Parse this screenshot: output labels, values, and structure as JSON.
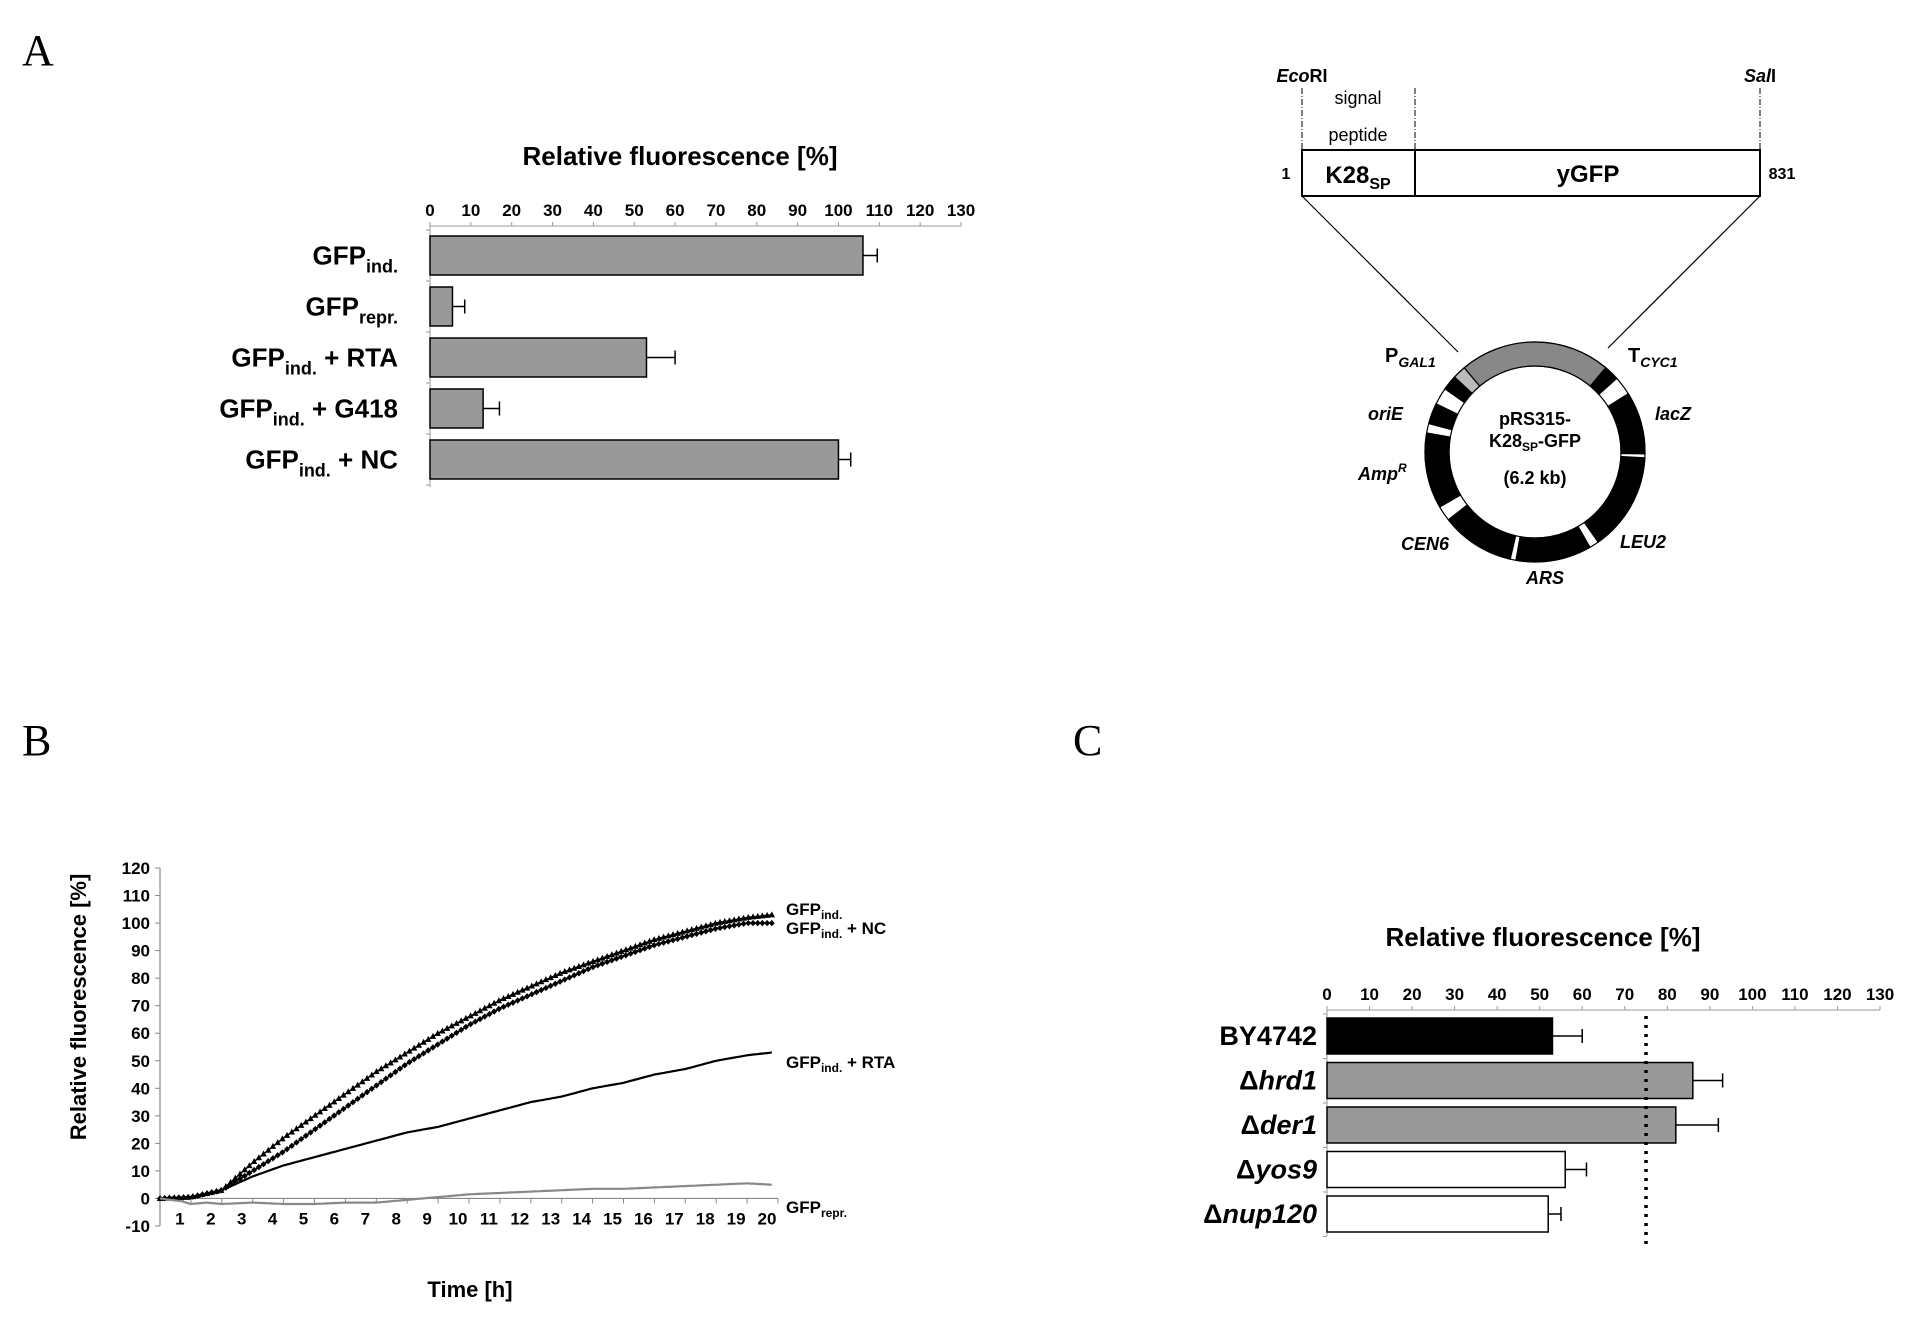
{
  "panels": {
    "a": {
      "letter": "A"
    },
    "b": {
      "letter": "B"
    },
    "c": {
      "letter": "C"
    }
  },
  "chart_data": [
    {
      "id": "A-bar",
      "type": "bar",
      "orientation": "horizontal",
      "title": "Relative fluorescence [%]",
      "xlim": [
        0,
        130
      ],
      "ticks": [
        0,
        10,
        20,
        30,
        40,
        50,
        60,
        70,
        80,
        90,
        100,
        110,
        120,
        130
      ],
      "categories": [
        {
          "base": "GFP",
          "sub": "ind.",
          "suffix": ""
        },
        {
          "base": "GFP",
          "sub": "repr.",
          "suffix": ""
        },
        {
          "base": "GFP",
          "sub": "ind.",
          "suffix": " + RTA"
        },
        {
          "base": "GFP",
          "sub": "ind.",
          "suffix": " +  G418"
        },
        {
          "base": "GFP",
          "sub": "ind.",
          "suffix": " + NC"
        }
      ],
      "values": [
        106,
        5.5,
        53,
        13,
        100
      ],
      "errors": [
        3.5,
        3,
        7,
        4,
        3
      ],
      "colors": [
        "#999999",
        "#999999",
        "#999999",
        "#999999",
        "#999999"
      ]
    },
    {
      "id": "B-line",
      "type": "line",
      "xlabel": "Time [h]",
      "ylabel": "Relative fluorescence [%]",
      "xlim": [
        0,
        20
      ],
      "ylim": [
        -10,
        120
      ],
      "xticks": [
        1,
        2,
        3,
        4,
        5,
        6,
        7,
        8,
        9,
        10,
        11,
        12,
        13,
        14,
        15,
        16,
        17,
        18,
        19,
        20
      ],
      "yticks": [
        -10,
        0,
        10,
        20,
        30,
        40,
        50,
        60,
        70,
        80,
        90,
        100,
        110,
        120
      ],
      "series": [
        {
          "id": "ind",
          "label_base": "GFP",
          "label_sub": "ind.",
          "label_suffix": "",
          "color": "#000000",
          "marker": "triangle",
          "x": [
            0,
            1,
            2,
            3,
            4,
            5,
            6,
            7,
            8,
            9,
            10,
            11,
            12,
            13,
            14,
            15,
            16,
            17,
            18,
            19,
            19.8
          ],
          "y": [
            0,
            0.5,
            3,
            13,
            22,
            30,
            38,
            46,
            53,
            60,
            66,
            72,
            77,
            82,
            86,
            90,
            94,
            97,
            100,
            102,
            103
          ]
        },
        {
          "id": "nc",
          "label_base": "GFP",
          "label_sub": "ind.",
          "label_suffix": " + NC",
          "color": "#000000",
          "marker": "diamond",
          "x": [
            0,
            1,
            2,
            3,
            4,
            5,
            6,
            7,
            8,
            9,
            10,
            11,
            12,
            13,
            14,
            15,
            16,
            17,
            18,
            19,
            19.8
          ],
          "y": [
            0,
            0.5,
            3,
            10,
            17,
            25,
            33,
            41,
            49,
            56,
            63,
            69,
            74,
            79,
            84,
            88,
            92,
            95,
            98,
            100,
            100
          ]
        },
        {
          "id": "rta",
          "label_base": "GFP",
          "label_sub": "ind.",
          "label_suffix": " + RTA",
          "color": "#000000",
          "marker": "none",
          "x": [
            0,
            1,
            2,
            3,
            4,
            5,
            6,
            7,
            8,
            9,
            10,
            11,
            12,
            13,
            14,
            15,
            16,
            17,
            18,
            19,
            19.8
          ],
          "y": [
            0,
            0.5,
            3,
            8,
            12,
            15,
            18,
            21,
            24,
            26,
            29,
            32,
            35,
            37,
            40,
            42,
            45,
            47,
            50,
            52,
            53
          ]
        },
        {
          "id": "repr",
          "label_base": "GFP",
          "label_sub": "repr.",
          "label_suffix": "",
          "color": "#888888",
          "marker": "none",
          "x": [
            0,
            0.7,
            1,
            1.5,
            2,
            3,
            4,
            5,
            6,
            7,
            8,
            9,
            10,
            11,
            12,
            13,
            14,
            15,
            16,
            17,
            18,
            19,
            19.8
          ],
          "y": [
            0,
            -1,
            -2,
            -1.5,
            -2,
            -1.5,
            -2,
            -2,
            -1.5,
            -1.5,
            -0.5,
            0.5,
            1.5,
            2,
            2.5,
            3,
            3.5,
            3.5,
            4,
            4.5,
            5,
            5.5,
            5
          ]
        }
      ]
    },
    {
      "id": "C-bar",
      "type": "bar",
      "orientation": "horizontal",
      "title": "Relative fluorescence [%]",
      "xlim": [
        0,
        130
      ],
      "ticks": [
        0,
        10,
        20,
        30,
        40,
        50,
        60,
        70,
        80,
        90,
        100,
        110,
        120,
        130
      ],
      "categories": [
        {
          "prefix": "",
          "name": "BY4742"
        },
        {
          "prefix": "Δ",
          "name": "hrd1"
        },
        {
          "prefix": "Δ",
          "name": "der1"
        },
        {
          "prefix": "Δ",
          "name": "yos9"
        },
        {
          "prefix": "Δ",
          "name": "nup120"
        }
      ],
      "values": [
        53,
        86,
        82,
        56,
        52
      ],
      "errors": [
        7,
        7,
        10,
        5,
        3
      ],
      "colors": [
        "#000000",
        "#999999",
        "#999999",
        "#ffffff",
        "#ffffff"
      ],
      "reference_line": 75
    }
  ],
  "plasmid": {
    "ecori": {
      "italic": "Eco",
      "rest": "RI"
    },
    "sali": {
      "italic": "Sal",
      "rest": "I"
    },
    "signal_line1": "signal",
    "signal_line2": "peptide",
    "start_num": "1",
    "end_num": "831",
    "k28_main": "K28",
    "k28_sub": "SP",
    "ygfp": "yGFP",
    "center_line1": "pRS315-",
    "center_line2_a": "K28",
    "center_line2_sub": "SP",
    "center_line2_b": "-GFP",
    "center_line3": "(6.2 kb)",
    "pgal_main": "P",
    "pgal_sub": "GAL1",
    "tcyc_main": "T",
    "tcyc_sub": "CYC1",
    "orie": "oriE",
    "lacz": "lacZ",
    "amp_main": "Amp",
    "amp_sup": "R",
    "cen6": "CEN6",
    "ars": "ARS",
    "leu2": "LEU2"
  }
}
